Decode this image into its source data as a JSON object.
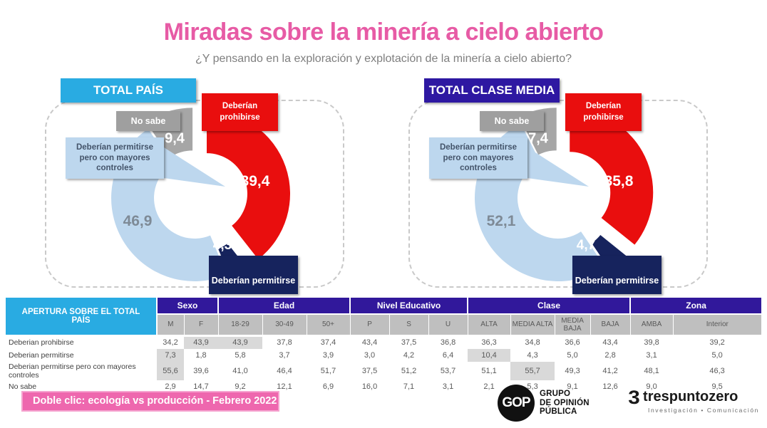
{
  "title": "Miradas sobre la minería a cielo abierto",
  "subtitle": "¿Y pensando en la exploración y explotación de la minería a cielo abierto?",
  "slice_labels": {
    "prohibirse": "Deberían prohibirse",
    "permitirse": "Deberían permitirse",
    "controles": "Deberían permitirse pero con mayores controles",
    "nosabe": "No sabe"
  },
  "chart_data": [
    {
      "type": "pie",
      "title": "TOTAL PAÍS",
      "labels": [
        "Deberían prohibirse",
        "Deberían permitirse",
        "Deberían permitirse pero con mayores controles",
        "No sabe"
      ],
      "values": [
        39.4,
        4.3,
        46.9,
        9.4
      ],
      "display_values": [
        "39,4",
        "4,3",
        "46,9",
        "9,4"
      ],
      "colors": [
        "#e90e0e",
        "#16235d",
        "#bdd7ee",
        "#a6a6a6"
      ],
      "donut": true,
      "start_angle": "top, clockwise"
    },
    {
      "type": "pie",
      "title": "TOTAL CLASE MEDIA",
      "labels": [
        "Deberían prohibirse",
        "Deberían permitirse",
        "Deberían permitirse pero con mayores controles",
        "No sabe"
      ],
      "values": [
        35.8,
        4.7,
        52.1,
        7.4
      ],
      "display_values": [
        "35,8",
        "4,7",
        "52,1",
        "7,4"
      ],
      "colors": [
        "#e90e0e",
        "#16235d",
        "#bdd7ee",
        "#a6a6a6"
      ],
      "donut": true,
      "start_angle": "top, clockwise"
    },
    {
      "type": "table",
      "title": "APERTURA SOBRE EL TOTAL PAÍS",
      "categories": [
        "M",
        "F",
        "18-29",
        "30-49",
        "50+",
        "P",
        "S",
        "U",
        "ALTA",
        "MEDIA ALTA",
        "MEDIA BAJA",
        "BAJA",
        "AMBA",
        "Interior"
      ],
      "series": [
        {
          "name": "Deberian prohibirse",
          "values": [
            34.2,
            43.9,
            43.9,
            37.8,
            37.4,
            43.4,
            37.5,
            36.8,
            36.3,
            34.8,
            36.6,
            43.4,
            39.8,
            39.2
          ]
        },
        {
          "name": "Deberian permitirse",
          "values": [
            7.3,
            1.8,
            5.8,
            3.7,
            3.9,
            3.0,
            4.2,
            6.4,
            10.4,
            4.3,
            5.0,
            2.8,
            3.1,
            5.0
          ]
        },
        {
          "name": "Deberian permitirse pero con mayores controles",
          "values": [
            55.6,
            39.6,
            41.0,
            46.4,
            51.7,
            37.5,
            51.2,
            53.7,
            51.1,
            55.7,
            49.3,
            41.2,
            48.1,
            46.3
          ]
        },
        {
          "name": "No sabe",
          "values": [
            2.9,
            14.7,
            9.2,
            12.1,
            6.9,
            16.0,
            7.1,
            3.1,
            2.1,
            5.3,
            9.1,
            12.6,
            9.0,
            9.5
          ]
        }
      ]
    }
  ],
  "table": {
    "corner": "APERTURA SOBRE EL TOTAL PAÍS",
    "groups": [
      {
        "label": "Sexo",
        "cols": [
          "M",
          "F"
        ]
      },
      {
        "label": "Edad",
        "cols": [
          "18-29",
          "30-49",
          "50+"
        ]
      },
      {
        "label": "Nivel Educativo",
        "cols": [
          "P",
          "S",
          "U"
        ]
      },
      {
        "label": "Clase",
        "cols": [
          "ALTA",
          "MEDIA ALTA",
          "MEDIA BAJA",
          "BAJA"
        ]
      },
      {
        "label": "Zona",
        "cols": [
          "AMBA",
          "Interior"
        ]
      }
    ],
    "rows": [
      {
        "label": "Deberian prohibirse",
        "values": [
          "34,2",
          "43,9",
          "43,9",
          "37,8",
          "37,4",
          "43,4",
          "37,5",
          "36,8",
          "36,3",
          "34,8",
          "36,6",
          "43,4",
          "39,8",
          "39,2"
        ],
        "highlights": [
          1,
          2
        ]
      },
      {
        "label": "Deberian permitirse",
        "values": [
          "7,3",
          "1,8",
          "5,8",
          "3,7",
          "3,9",
          "3,0",
          "4,2",
          "6,4",
          "10,4",
          "4,3",
          "5,0",
          "2,8",
          "3,1",
          "5,0"
        ],
        "highlights": [
          0,
          8
        ]
      },
      {
        "label": "Deberian permitirse pero con mayores controles",
        "values": [
          "55,6",
          "39,6",
          "41,0",
          "46,4",
          "51,7",
          "37,5",
          "51,2",
          "53,7",
          "51,1",
          "55,7",
          "49,3",
          "41,2",
          "48,1",
          "46,3"
        ],
        "highlights": [
          0,
          9
        ]
      },
      {
        "label": "No sabe",
        "values": [
          "2,9",
          "14,7",
          "9,2",
          "12,1",
          "6,9",
          "16,0",
          "7,1",
          "3,1",
          "2,1",
          "5,3",
          "9,1",
          "12,6",
          "9,0",
          "9,5"
        ],
        "highlights": []
      }
    ]
  },
  "footer": {
    "banner": "Doble clic: ecología vs producción - Febrero 2022",
    "gop_logo": {
      "monogram": "GOP",
      "lines": [
        "GRUPO",
        "DE OPINIÓN",
        "PÚBLICA"
      ]
    },
    "tpz_logo": {
      "numeral": "3",
      "name": "trespuntozero",
      "tagline": "Investigación • Comunicación"
    }
  }
}
